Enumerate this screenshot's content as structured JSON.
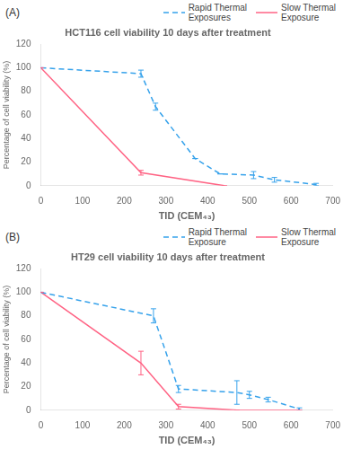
{
  "chart_data": [
    {
      "type": "line",
      "title": "HCT116 cell viability 10 days after treatment",
      "annotations": [
        "(A)"
      ],
      "x_label": "TID (CEM₄₃)",
      "y_label": "Percentage of cell viability (%)",
      "series": [
        {
          "name": "Rapid Thermal\nExposures",
          "line_style": "dashed",
          "x": [
            0,
            240,
            275,
            370,
            430,
            510,
            560,
            660
          ],
          "values": [
            100,
            95,
            67,
            23,
            10,
            9,
            5,
            1
          ],
          "yerr": [
            0,
            3,
            3,
            0,
            0,
            3,
            2,
            1
          ]
        },
        {
          "name": "Slow Thermal\nExposure",
          "line_style": "solid",
          "x": [
            0,
            240,
            440
          ],
          "values": [
            100,
            11,
            0
          ],
          "yerr": [
            0,
            2,
            0
          ]
        }
      ],
      "xlim": [
        0,
        700
      ],
      "xticks": [
        0,
        100,
        200,
        300,
        400,
        500,
        600,
        700
      ],
      "ylim": [
        0,
        120
      ],
      "yticks": [
        0,
        20,
        40,
        60,
        80,
        100,
        120
      ],
      "grid": false,
      "legend": "upper right"
    },
    {
      "type": "line",
      "title": "HT29 cell viability 10 days after treatment",
      "annotations": [
        "(B)"
      ],
      "x_label": "TID (CEM₄₃)",
      "y_label": "Percentage of cell viability (%)",
      "series": [
        {
          "name": "Rapid Thermal\nExposure",
          "line_style": "dashed",
          "x": [
            0,
            270,
            330,
            470,
            500,
            545,
            620
          ],
          "values": [
            100,
            80,
            18,
            15,
            13,
            9,
            1
          ],
          "yerr": [
            0,
            6,
            3,
            10,
            3,
            2,
            1
          ]
        },
        {
          "name": "Slow Thermal\nExposure",
          "line_style": "solid",
          "x": [
            0,
            240,
            330,
            470,
            620
          ],
          "values": [
            100,
            40,
            3,
            0,
            0
          ],
          "yerr": [
            0,
            10,
            2,
            0,
            0
          ]
        }
      ],
      "xlim": [
        0,
        700
      ],
      "xticks": [
        0,
        100,
        200,
        300,
        400,
        500,
        600,
        700
      ],
      "ylim": [
        0,
        120
      ],
      "yticks": [
        0,
        20,
        40,
        60,
        80,
        100,
        120
      ],
      "grid": false,
      "legend": "upper right"
    }
  ]
}
